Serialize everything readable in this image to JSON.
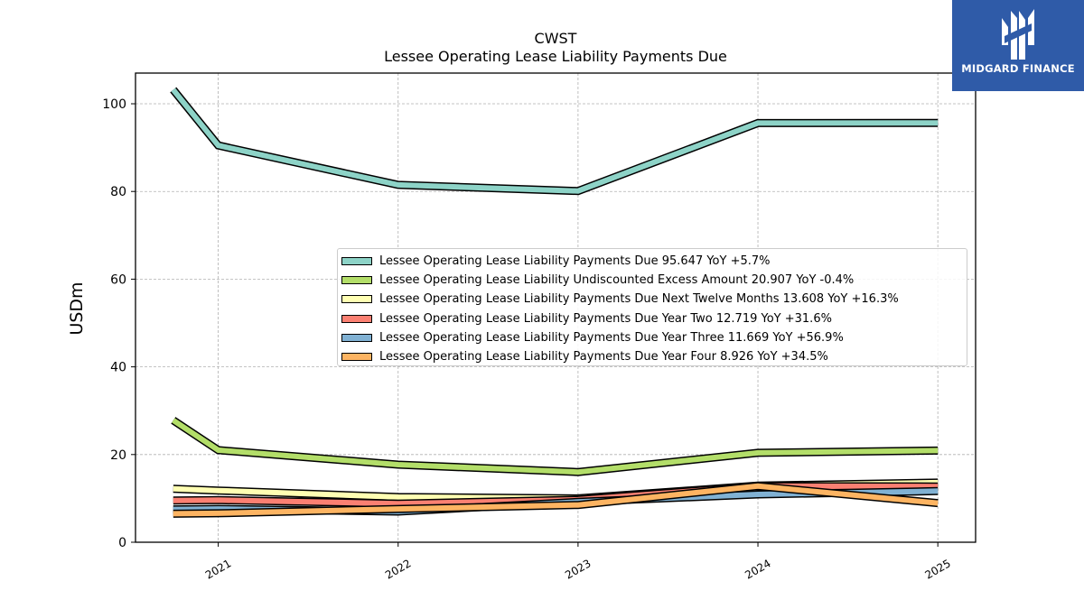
{
  "chart_data": {
    "type": "line",
    "title": "CWST",
    "subtitle": "Lessee Operating Lease Liability Payments Due",
    "ylabel": "USDm",
    "xlabel": "",
    "ylim": [
      0,
      107
    ],
    "xlim": [
      2020.54,
      2025.21
    ],
    "yticks": [
      0,
      20,
      40,
      60,
      80,
      100
    ],
    "xticks": [
      2021,
      2022,
      2023,
      2024,
      2025
    ],
    "grid": true,
    "legend_position": "center-right",
    "x": [
      2020.75,
      2021.0,
      2022.0,
      2023.0,
      2024.0,
      2025.0
    ],
    "series": [
      {
        "name": "Lessee Operating Lease Liability Payments Due",
        "legend": "Lessee Operating Lease Liability Payments Due  95.647 YoY +5.7%",
        "color": "#8dd3c7",
        "values": [
          103.2,
          90.5,
          81.5,
          80.1,
          95.6,
          95.647
        ]
      },
      {
        "name": "Lessee Operating Lease Liability Undiscounted Excess Amount",
        "legend": "Lessee Operating Lease Liability Undiscounted Excess Amount  20.907 YoY -0.4%",
        "color": "#b3de69",
        "values": [
          27.8,
          21.0,
          17.7,
          16.0,
          20.4,
          20.907
        ]
      },
      {
        "name": "Lessee Operating Lease Liability Payments Due Next Twelve Months",
        "legend": "Lessee Operating Lease Liability Payments Due Next Twelve Months  13.608 YoY +16.3%",
        "color": "#ffffb3",
        "values": [
          12.2,
          11.8,
          10.3,
          10.0,
          12.9,
          13.608
        ]
      },
      {
        "name": "Lessee Operating Lease Liability Payments Due Year Two",
        "legend": "Lessee Operating Lease Liability Payments Due Year Two  12.719 YoY +31.6%",
        "color": "#fb8072",
        "values": [
          9.5,
          9.6,
          8.8,
          9.7,
          12.8,
          12.719
        ]
      },
      {
        "name": "Lessee Operating Lease Liability Payments Due Year Three",
        "legend": "Lessee Operating Lease Liability Payments Due Year Three  11.669 YoY +56.9%",
        "color": "#80b1d3",
        "values": [
          7.5,
          7.6,
          7.0,
          9.2,
          10.9,
          11.669
        ]
      },
      {
        "name": "Lessee Operating Lease Liability Payments Due Year Four",
        "legend": "Lessee Operating Lease Liability Payments Due Year Four  8.926 YoY +34.5%",
        "color": "#fdb462",
        "values": [
          6.5,
          6.6,
          7.6,
          8.5,
          12.8,
          8.926
        ]
      }
    ]
  },
  "logo": {
    "text": "MIDGARD FINANCE",
    "color": "#2f5ba8"
  }
}
